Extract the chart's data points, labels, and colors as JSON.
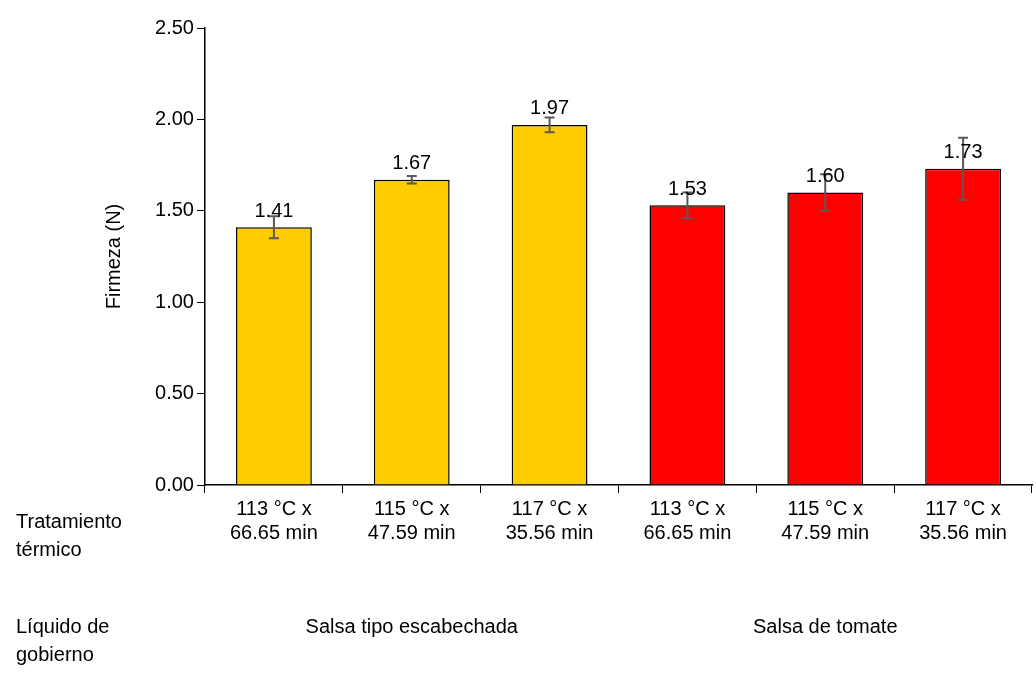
{
  "chart_data": {
    "type": "bar",
    "ylabel": "Firmeza (N)",
    "categories": [
      "113 °C x 66.65 min",
      "115 °C x 47.59 min",
      "117 °C x 35.56 min",
      "113 °C x 66.65 min",
      "115 °C x 47.59 min",
      "117 °C x 35.56 min"
    ],
    "values": [
      1.41,
      1.67,
      1.97,
      1.53,
      1.6,
      1.73
    ],
    "errors": [
      0.06,
      0.02,
      0.04,
      0.07,
      0.1,
      0.17
    ],
    "colors": [
      "#ffcc00",
      "#ffcc00",
      "#ffcc00",
      "#ff0000",
      "#ff0000",
      "#ff0000"
    ],
    "ylim": [
      0,
      2.5
    ],
    "yticks": [
      {
        "value": 0,
        "label": "0.00"
      },
      {
        "value": 0.5,
        "label": "0.50"
      },
      {
        "value": 1,
        "label": "1.00"
      },
      {
        "value": 1.5,
        "label": "1.50"
      },
      {
        "value": 2,
        "label": "2.00"
      },
      {
        "value": 2.5,
        "label": "2.50"
      }
    ],
    "value_labels": [
      "1.41",
      "1.67",
      "1.97",
      "1.53",
      "1.60",
      "1.73"
    ],
    "grid": false,
    "legend": false,
    "annotations": [
      "Tratamiento térmico",
      "Líquido de gobierno",
      "Salsa tipo escabechada",
      "Salsa de tomate"
    ]
  }
}
